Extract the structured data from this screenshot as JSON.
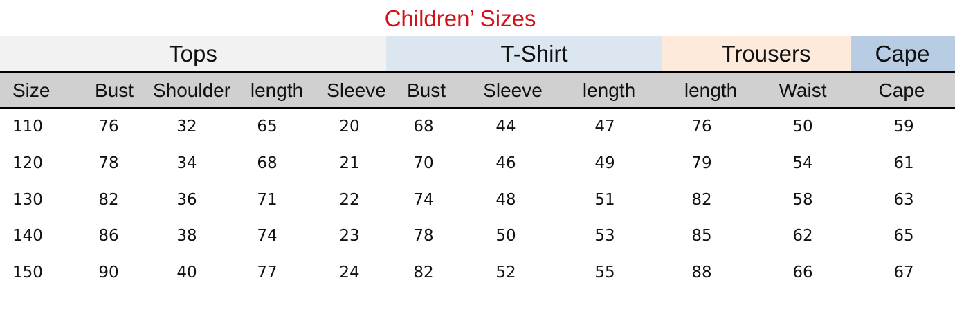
{
  "title": "Children’  Sizes",
  "groups": [
    {
      "label": "Tops",
      "color": "#f2f2f2"
    },
    {
      "label": "T-Shirt",
      "color": "#dce6f0"
    },
    {
      "label": "Trousers",
      "color": "#fdeadb"
    },
    {
      "label": "Cape",
      "color": "#b8cce4"
    }
  ],
  "columns": [
    "Size",
    "Bust",
    "Shoulder",
    "length",
    "Sleeve",
    "Bust",
    "Sleeve",
    "length",
    "length",
    "Waist",
    "Cape"
  ],
  "rows": [
    [
      "110",
      "76",
      "32",
      "65",
      "20",
      "68",
      "44",
      "47",
      "76",
      "50",
      "59"
    ],
    [
      "120",
      "78",
      "34",
      "68",
      "21",
      "70",
      "46",
      "49",
      "79",
      "54",
      "61"
    ],
    [
      "130",
      "82",
      "36",
      "71",
      "22",
      "74",
      "48",
      "51",
      "82",
      "58",
      "63"
    ],
    [
      "140",
      "86",
      "38",
      "74",
      "23",
      "78",
      "50",
      "53",
      "85",
      "62",
      "65"
    ],
    [
      "150",
      "90",
      "40",
      "77",
      "24",
      "82",
      "52",
      "55",
      "88",
      "66",
      "67"
    ]
  ]
}
